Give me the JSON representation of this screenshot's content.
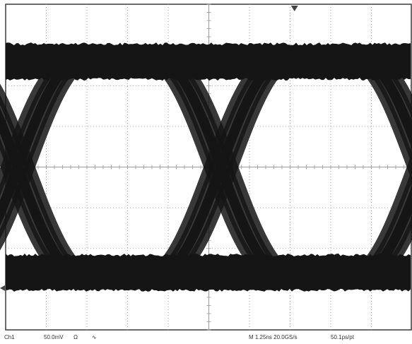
{
  "chart_data": {
    "type": "line",
    "subtype": "eye-diagram",
    "title": "",
    "xlabel": "",
    "ylabel": "",
    "grid": true,
    "grid_divisions": {
      "x": 10,
      "y": 8
    },
    "trigger_marker": "down-triangle",
    "ground_marker": "left-arrow",
    "levels": {
      "high": 0.72,
      "low": -0.72
    },
    "crossing_level": 0.0,
    "unit_interval_divisions": 5,
    "crossing_times_div": [
      0.3,
      5.3,
      10.3
    ]
  },
  "status": {
    "channel": "Ch1",
    "scale": "50.0mV",
    "impedance_symbol": "Ω",
    "extra": "∿",
    "timebase": "M 1.25ns 20.0GS/s",
    "sampling": "50.1ps/pt"
  },
  "colors": {
    "trace": "#151515",
    "grid": "#9a9a9a",
    "background": "#ffffff",
    "frame": "#3a3a3a"
  }
}
